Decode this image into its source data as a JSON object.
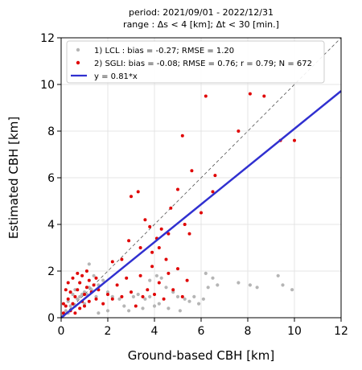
{
  "chart_data": {
    "type": "scatter",
    "title_lines": [
      "period: 2021/09/01 - 2022/12/31",
      "range : Δs < 4 [km]; Δt < 30 [min.]"
    ],
    "xlabel": "Ground-based CBH [km]",
    "ylabel": "Estimated CBH [km]",
    "xlim": [
      0,
      12
    ],
    "ylim": [
      0,
      12
    ],
    "xticks": [
      0,
      2,
      4,
      6,
      8,
      10,
      12
    ],
    "yticks": [
      0,
      2,
      4,
      6,
      8,
      10,
      12
    ],
    "xtick_labels": [
      "0",
      "2",
      "4",
      "6",
      "8",
      "10",
      "12"
    ],
    "ytick_labels": [
      "0",
      "2",
      "4",
      "6",
      "8",
      "10",
      "12"
    ],
    "grid": true,
    "legend_position": "top-left",
    "one_to_one_line": true,
    "series": [
      {
        "name": "1) LCL : bias = -0.27; RMSE = 1.20",
        "color": "#b5b5b5",
        "kind": "points",
        "points": [
          [
            0.1,
            0.1
          ],
          [
            0.2,
            0.3
          ],
          [
            0.3,
            0.2
          ],
          [
            0.4,
            0.5
          ],
          [
            0.5,
            0.6
          ],
          [
            0.6,
            0.5
          ],
          [
            0.7,
            0.8
          ],
          [
            0.8,
            0.9
          ],
          [
            0.9,
            1.0
          ],
          [
            1.0,
            1.1
          ],
          [
            1.1,
            1.0
          ],
          [
            1.2,
            1.3
          ],
          [
            1.3,
            1.2
          ],
          [
            0.5,
            1.0
          ],
          [
            0.8,
            1.5
          ],
          [
            1.2,
            2.3
          ],
          [
            1.4,
            1.8
          ],
          [
            1.6,
            1.4
          ],
          [
            0.3,
            0.7
          ],
          [
            0.6,
            1.2
          ],
          [
            1.0,
            0.6
          ],
          [
            1.5,
            0.9
          ],
          [
            1.8,
            1.6
          ],
          [
            2.0,
            1.1
          ],
          [
            2.2,
            0.9
          ],
          [
            2.5,
            0.8
          ],
          [
            2.7,
            0.5
          ],
          [
            2.9,
            0.3
          ],
          [
            3.1,
            0.9
          ],
          [
            3.3,
            1.0
          ],
          [
            3.5,
            0.4
          ],
          [
            3.6,
            0.8
          ],
          [
            3.8,
            0.9
          ],
          [
            4.0,
            0.5
          ],
          [
            4.2,
            0.6
          ],
          [
            4.3,
            1.7
          ],
          [
            4.5,
            1.3
          ],
          [
            4.6,
            0.4
          ],
          [
            4.8,
            1.1
          ],
          [
            5.0,
            0.9
          ],
          [
            5.1,
            0.3
          ],
          [
            5.3,
            0.8
          ],
          [
            5.5,
            0.7
          ],
          [
            5.7,
            0.9
          ],
          [
            5.9,
            0.6
          ],
          [
            6.1,
            0.8
          ],
          [
            6.3,
            1.3
          ],
          [
            6.5,
            1.7
          ],
          [
            6.7,
            1.4
          ],
          [
            7.6,
            1.5
          ],
          [
            8.1,
            1.4
          ],
          [
            8.4,
            1.3
          ],
          [
            9.3,
            1.8
          ],
          [
            9.5,
            1.4
          ],
          [
            9.9,
            1.2
          ],
          [
            6.2,
            1.9
          ],
          [
            3.8,
            1.6
          ],
          [
            4.1,
            1.8
          ],
          [
            2.0,
            0.3
          ],
          [
            1.6,
            0.2
          ]
        ]
      },
      {
        "name": "2) SGLI: bias = -0.08; RMSE = 0.76; r = 0.79; N = 672",
        "color": "#e00000",
        "kind": "points",
        "points": [
          [
            0.1,
            0.2
          ],
          [
            0.2,
            0.5
          ],
          [
            0.3,
            0.8
          ],
          [
            0.4,
            1.1
          ],
          [
            0.5,
            0.6
          ],
          [
            0.6,
            0.9
          ],
          [
            0.7,
            1.2
          ],
          [
            0.8,
            1.5
          ],
          [
            0.9,
            0.7
          ],
          [
            1.0,
            1.0
          ],
          [
            1.1,
            1.3
          ],
          [
            1.2,
            1.6
          ],
          [
            0.2,
            1.2
          ],
          [
            0.3,
            1.5
          ],
          [
            0.5,
            1.7
          ],
          [
            0.7,
            1.9
          ],
          [
            0.9,
            1.8
          ],
          [
            1.1,
            2.0
          ],
          [
            1.3,
            1.1
          ],
          [
            1.4,
            1.4
          ],
          [
            1.5,
            0.8
          ],
          [
            0.1,
            0.6
          ],
          [
            0.4,
            0.3
          ],
          [
            0.6,
            0.2
          ],
          [
            0.8,
            0.4
          ],
          [
            1.0,
            0.5
          ],
          [
            1.2,
            0.7
          ],
          [
            1.5,
            1.7
          ],
          [
            1.6,
            1.2
          ],
          [
            1.8,
            0.6
          ],
          [
            2.0,
            1.0
          ],
          [
            2.2,
            0.8
          ],
          [
            2.4,
            1.4
          ],
          [
            2.6,
            0.9
          ],
          [
            2.8,
            1.7
          ],
          [
            3.0,
            1.1
          ],
          [
            3.2,
            0.5
          ],
          [
            3.4,
            1.8
          ],
          [
            3.5,
            0.9
          ],
          [
            3.7,
            1.2
          ],
          [
            3.9,
            2.2
          ],
          [
            4.0,
            1.0
          ],
          [
            4.2,
            1.5
          ],
          [
            4.4,
            0.8
          ],
          [
            4.6,
            1.9
          ],
          [
            4.8,
            1.2
          ],
          [
            5.0,
            2.1
          ],
          [
            5.2,
            0.9
          ],
          [
            5.4,
            1.6
          ],
          [
            3.3,
            5.4
          ],
          [
            3.0,
            5.2
          ],
          [
            3.6,
            4.2
          ],
          [
            3.9,
            2.8
          ],
          [
            4.1,
            3.4
          ],
          [
            4.3,
            3.8
          ],
          [
            4.6,
            3.6
          ],
          [
            4.5,
            2.5
          ],
          [
            4.7,
            4.7
          ],
          [
            5.0,
            5.5
          ],
          [
            5.3,
            4.0
          ],
          [
            5.5,
            3.6
          ],
          [
            5.2,
            7.8
          ],
          [
            5.6,
            6.3
          ],
          [
            6.0,
            4.5
          ],
          [
            6.2,
            9.5
          ],
          [
            6.5,
            5.4
          ],
          [
            6.6,
            6.1
          ],
          [
            7.6,
            8.0
          ],
          [
            8.1,
            9.6
          ],
          [
            8.7,
            9.5
          ],
          [
            9.4,
            7.6
          ],
          [
            10.0,
            7.6
          ],
          [
            3.4,
            3.0
          ],
          [
            2.9,
            3.3
          ],
          [
            3.8,
            3.9
          ],
          [
            4.2,
            3.0
          ],
          [
            2.2,
            2.4
          ],
          [
            2.6,
            2.5
          ]
        ]
      },
      {
        "name": "y = 0.81*x",
        "color": "#3030d0",
        "kind": "fit_line",
        "slope": 0.81
      }
    ]
  }
}
